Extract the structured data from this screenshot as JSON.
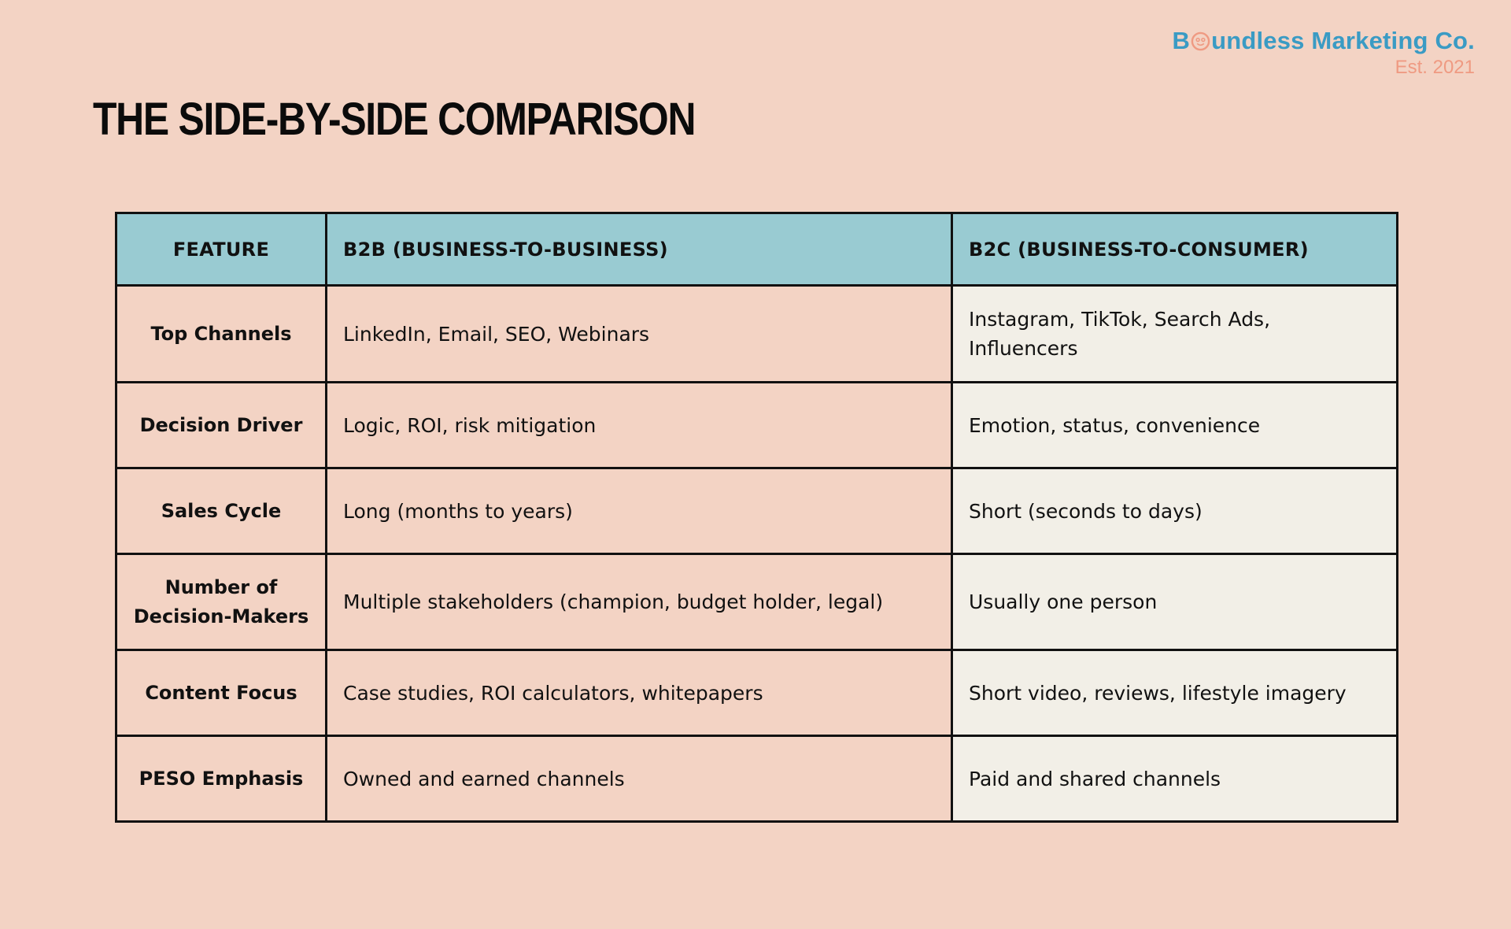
{
  "brand": {
    "name_prefix": "B",
    "name_suffix": "undless Marketing Co.",
    "established": "Est. 2021",
    "logo_icon": "face-o-logo-icon"
  },
  "page": {
    "title": "THE SIDE-BY-SIDE COMPARISON"
  },
  "table": {
    "headers": [
      "FEATURE",
      "B2B (BUSINESS-TO-BUSINESS)",
      "B2C (BUSINESS-TO-CONSUMER)"
    ],
    "rows": [
      {
        "feature": "Top Channels",
        "b2b": "LinkedIn, Email, SEO, Webinars",
        "b2c": "Instagram, TikTok, Search Ads, Influencers"
      },
      {
        "feature": "Decision Driver",
        "b2b": "Logic, ROI, risk mitigation",
        "b2c": "Emotion, status, convenience"
      },
      {
        "feature": "Sales Cycle",
        "b2b": "Long (months to years)",
        "b2c": "Short (seconds to days)"
      },
      {
        "feature": "Number of Decision-Makers",
        "b2b": "Multiple stakeholders (champion, budget holder, legal)",
        "b2c": "Usually one person"
      },
      {
        "feature": "Content Focus",
        "b2b": "Case studies, ROI calculators, whitepapers",
        "b2c": "Short video, reviews, lifestyle imagery"
      },
      {
        "feature": "PESO Emphasis",
        "b2b": "Owned and earned channels",
        "b2c": "Paid and shared channels"
      }
    ]
  },
  "colors": {
    "background": "#f3d3c4",
    "header": "#99cbd2",
    "b2c_column": "#f2efe7",
    "brand": "#3a9bc4",
    "accent": "#ef9a82"
  }
}
